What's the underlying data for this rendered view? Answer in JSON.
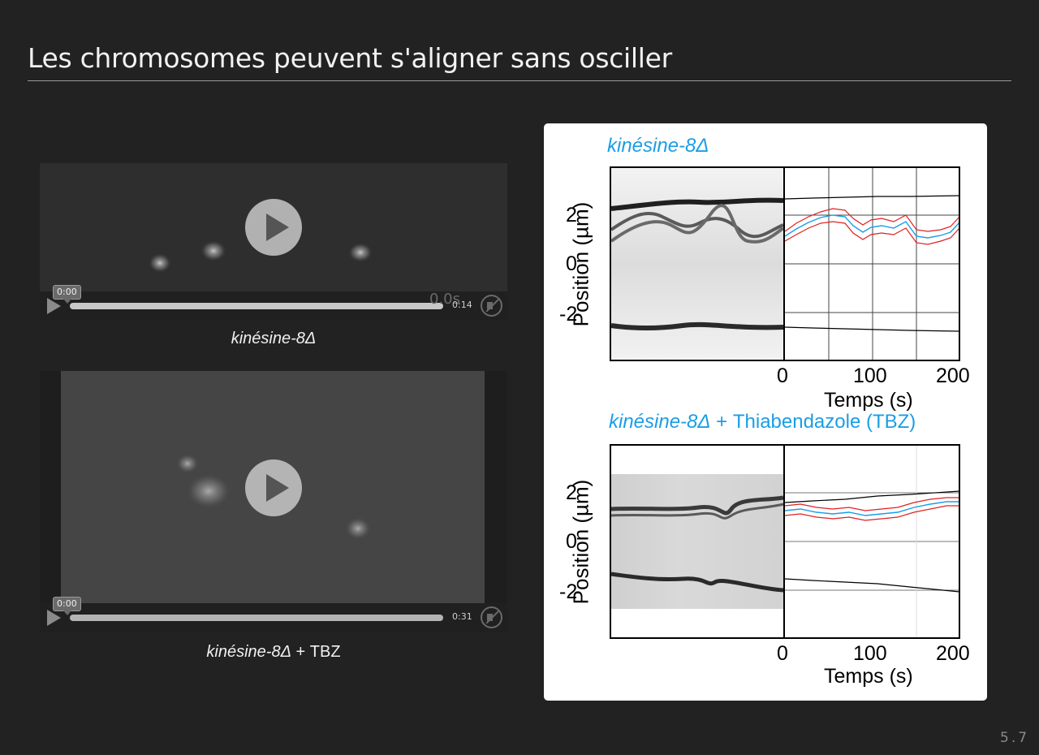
{
  "slide": {
    "title": "Les chromosomes peuvent s'aligner sans osciller",
    "number": "5.7"
  },
  "videos": [
    {
      "current_time": "0:00",
      "duration": "0:14",
      "overlay_text": "0.0s",
      "caption": "kinésine-8Δ"
    },
    {
      "current_time": "0:00",
      "duration": "0:31",
      "caption_italic": "kinésine-8Δ",
      "caption_rest": " + TBZ"
    }
  ],
  "figure": {
    "top_panel": {
      "title_italic": "kinésine-8Δ",
      "ylabel": "Position (µm)",
      "xlabel": "Temps (s)",
      "yticks": [
        "2",
        "0",
        "-2"
      ],
      "xticks": [
        "0",
        "100",
        "200"
      ]
    },
    "bottom_panel": {
      "title_italic": "kinésine-8Δ",
      "title_rest": " + Thiabendazole (TBZ)",
      "ylabel": "Position (µm)",
      "xlabel": "Temps (s)",
      "yticks": [
        "2",
        "0",
        "-2"
      ],
      "xticks": [
        "0",
        "100",
        "200"
      ]
    }
  },
  "colors": {
    "background": "#222222",
    "accent_title": "#1a9ee6",
    "trace_blue": "#1a9ee6",
    "trace_red": "#e02020"
  }
}
